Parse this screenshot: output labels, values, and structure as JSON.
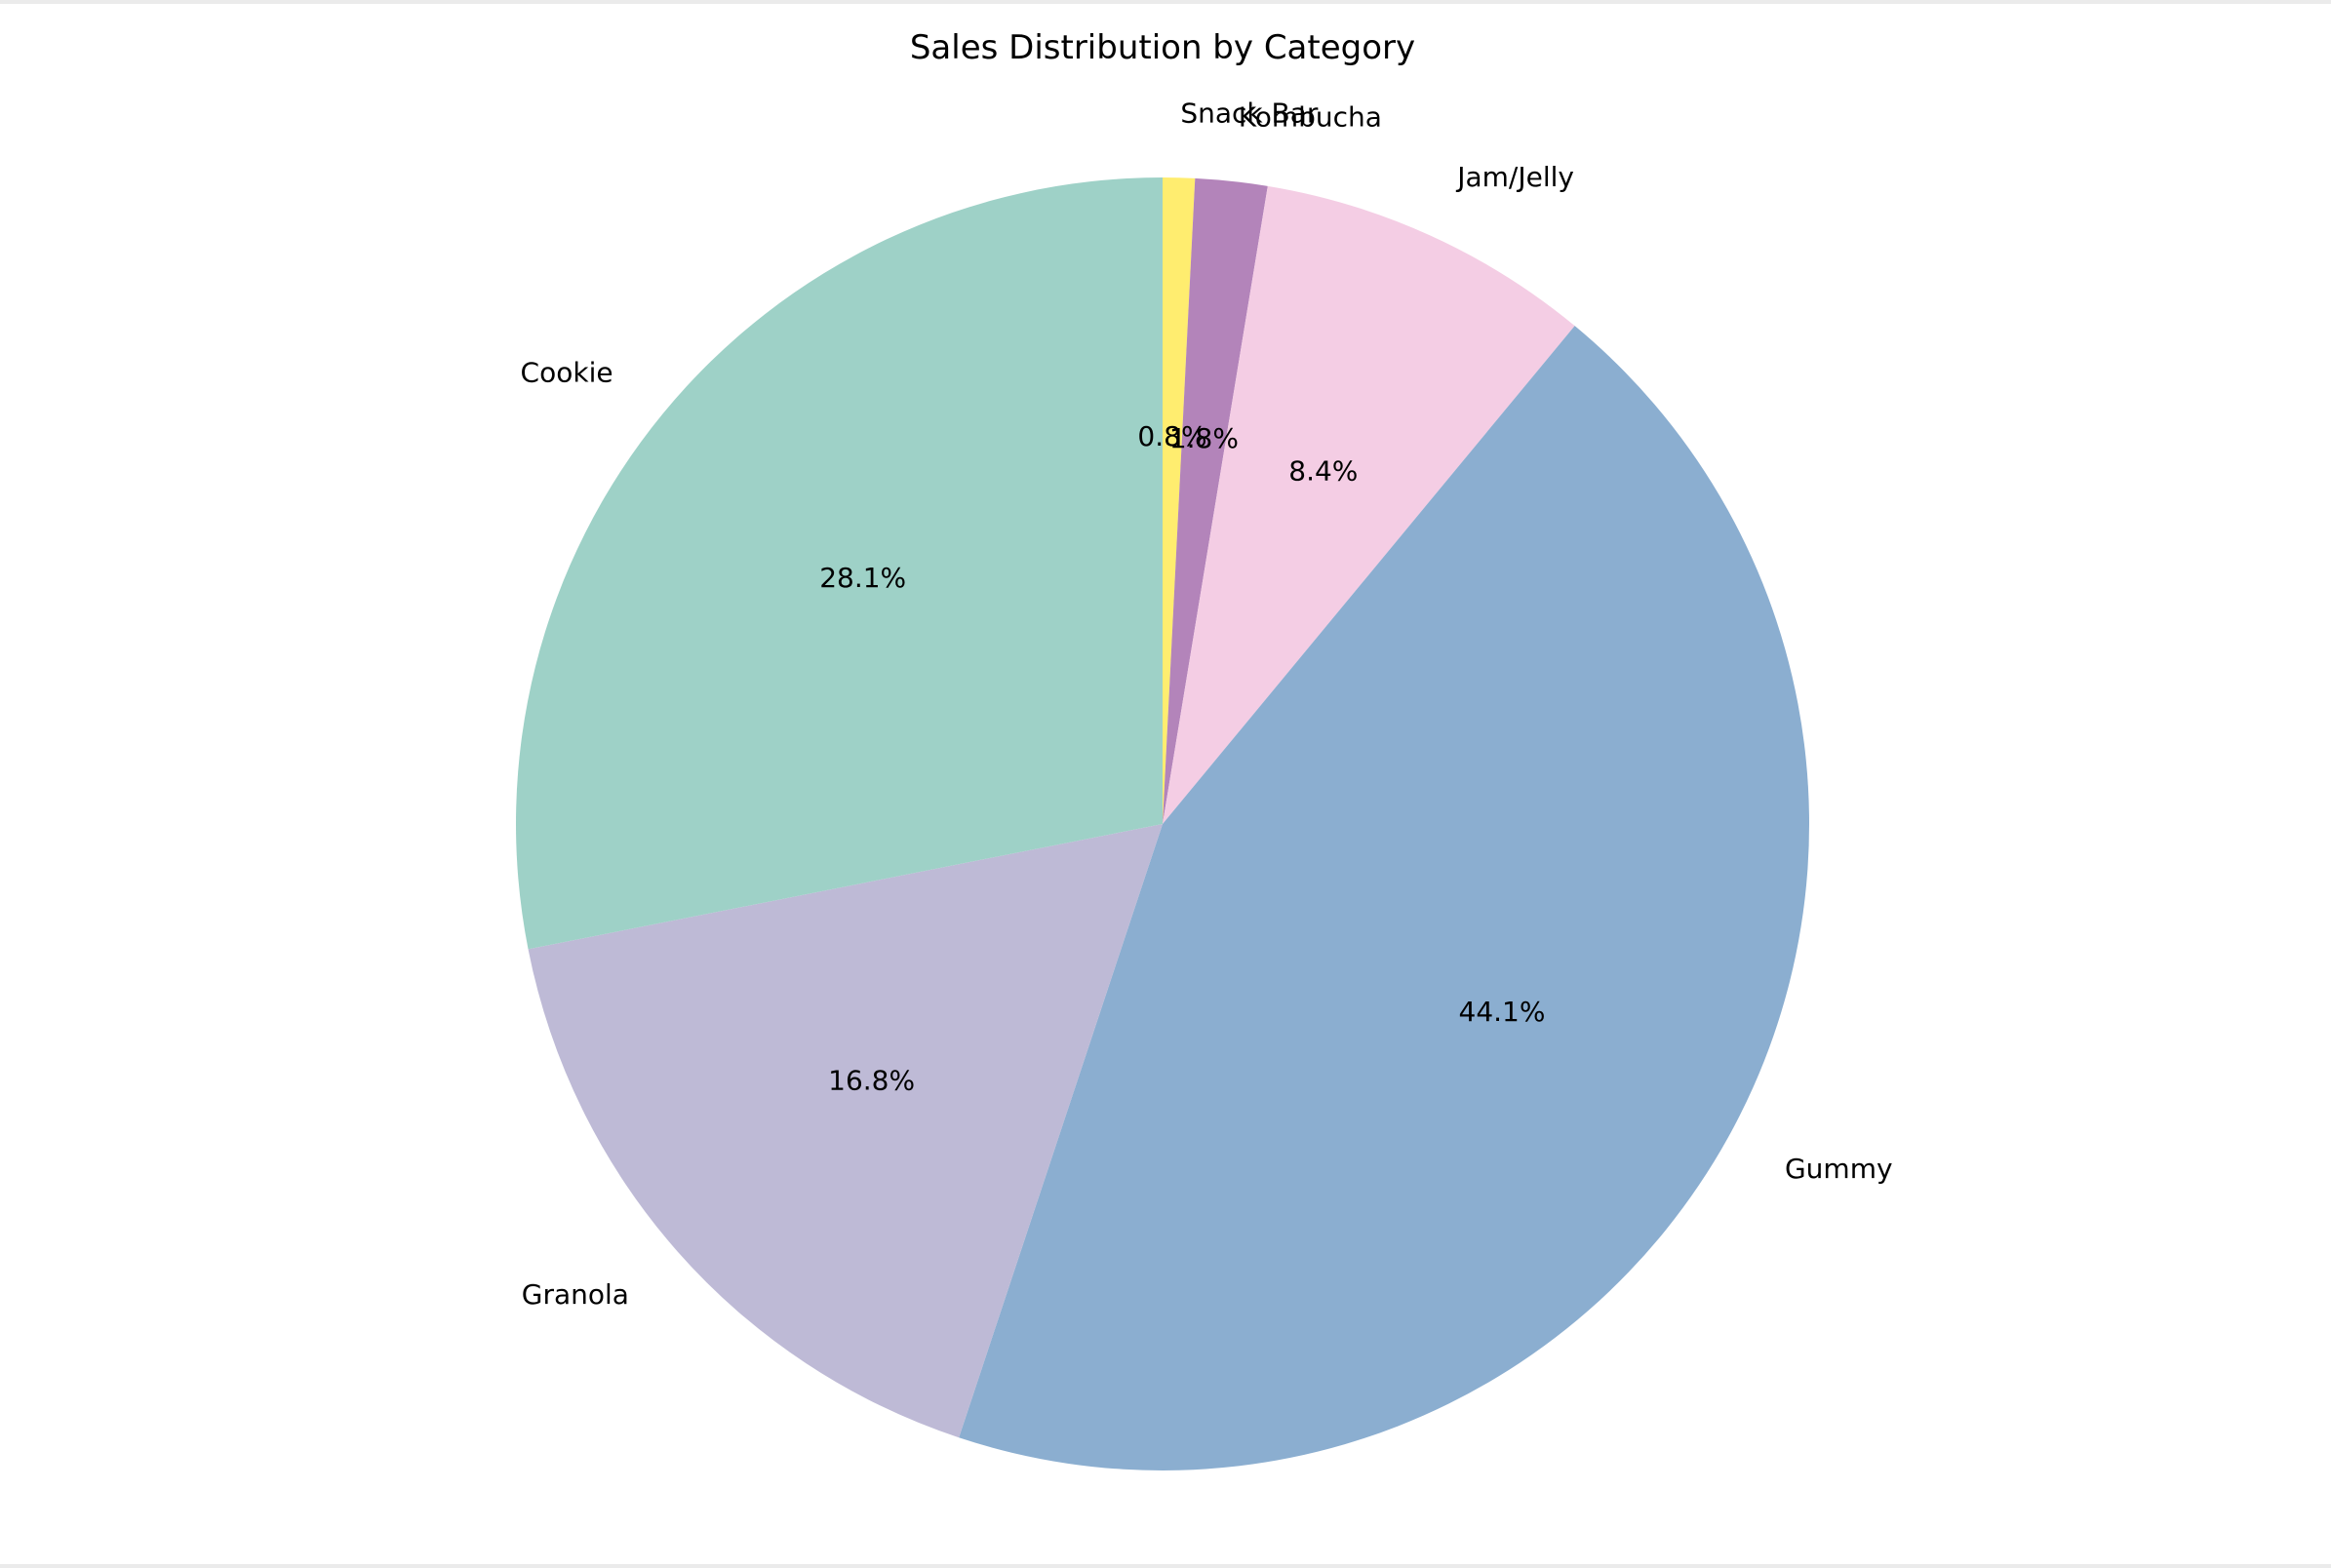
{
  "chart_data": {
    "type": "pie",
    "title": "Sales Distribution by Category",
    "start_angle_deg": 90,
    "direction": "clockwise",
    "slices": [
      {
        "label": "Snack Bar",
        "value": 0.8,
        "pct_text": "0.8%",
        "color": "#ffed6f"
      },
      {
        "label": "Kombucha",
        "value": 1.8,
        "pct_text": "1.8%",
        "color": "#b384ba"
      },
      {
        "label": "Jam/Jelly",
        "value": 8.4,
        "pct_text": "8.4%",
        "color": "#f4cde4"
      },
      {
        "label": "Gummy",
        "value": 44.1,
        "pct_text": "44.1%",
        "color": "#8baed0"
      },
      {
        "label": "Granola",
        "value": 16.8,
        "pct_text": "16.8%",
        "color": "#bebad6"
      },
      {
        "label": "Cookie",
        "value": 28.1,
        "pct_text": "28.1%",
        "color": "#9ed1c7"
      }
    ],
    "legend": "none",
    "grid": false
  }
}
